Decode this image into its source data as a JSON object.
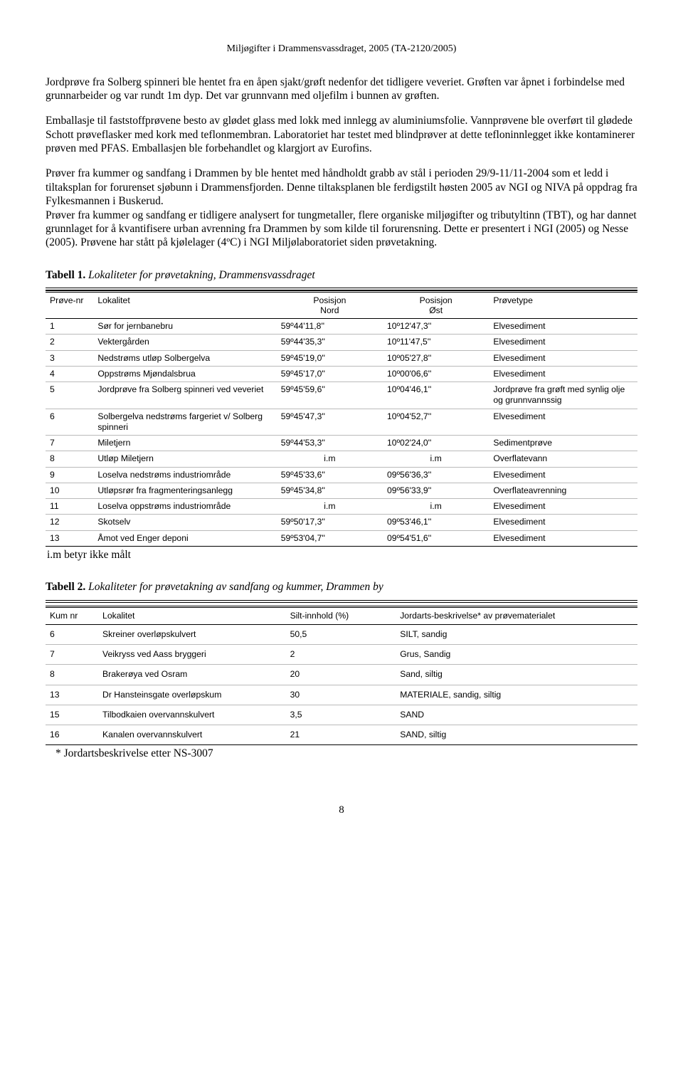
{
  "header": "Miljøgifter i Drammensvassdraget, 2005 (TA-2120/2005)",
  "para1": "Jordprøve fra Solberg spinneri ble hentet fra en åpen sjakt/grøft nedenfor det tidligere veveriet. Grøften var åpnet i forbindelse med grunnarbeider og var rundt 1m dyp. Det var grunnvann med oljefilm i bunnen av grøften.",
  "para2": "Emballasje til faststoffprøvene besto av glødet glass med lokk med innlegg av aluminiumsfolie. Vannprøvene ble overført til glødede Schott prøveflasker med kork med teflonmembran. Laboratoriet har testet med blindprøver at dette tefloninnlegget ikke kontaminerer prøven med PFAS. Emballasjen ble forbehandlet og klargjort av Eurofins.",
  "para3": "Prøver fra kummer og sandfang i Drammen by ble hentet med håndholdt grabb av stål i perioden 29/9-11/11-2004 som et ledd i tiltaksplan for forurenset sjøbunn i Drammensfjorden. Denne tiltaksplanen ble ferdigstilt høsten 2005 av NGI og NIVA på oppdrag fra Fylkesmannen i Buskerud.",
  "para4": "Prøver fra kummer og sandfang er tidligere analysert for tungmetaller, flere organiske miljøgifter og tributyltinn (TBT), og har dannet grunnlaget for å kvantifisere urban avrenning fra Drammen by som kilde til forurensning. Dette er presentert i NGI (2005) og Nesse (2005). Prøvene har stått på kjølelager (4ºC) i NGI Miljølaboratoriet siden prøvetakning.",
  "table1": {
    "caption_bold": "Tabell 1.",
    "caption_ital": " Lokaliteter for prøvetakning, Drammensvassdraget",
    "headers": {
      "c1": "Prøve-nr",
      "c2": "Lokalitet",
      "c3a": "Posisjon",
      "c3b": "Nord",
      "c4a": "Posisjon",
      "c4b": "Øst",
      "c5": "Prøvetype"
    },
    "rows": [
      {
        "n": "1",
        "lok": "Sør for jernbanebru",
        "nord": "59º44'11,8''",
        "ost": "10º12'47,3''",
        "pt": "Elvesediment"
      },
      {
        "n": "2",
        "lok": "Vektergården",
        "nord": "59º44'35,3''",
        "ost": "10º11'47,5''",
        "pt": "Elvesediment"
      },
      {
        "n": "3",
        "lok": "Nedstrøms utløp Solbergelva",
        "nord": "59º45'19,0''",
        "ost": "10º05'27,8''",
        "pt": "Elvesediment"
      },
      {
        "n": "4",
        "lok": "Oppstrøms Mjøndalsbrua",
        "nord": "59º45'17,0''",
        "ost": "10º00'06,6''",
        "pt": "Elvesediment"
      },
      {
        "n": "5",
        "lok": "Jordprøve fra Solberg spinneri ved veveriet",
        "nord": "59º45'59,6''",
        "ost": "10º04'46,1''",
        "pt": "Jordprøve fra grøft med synlig olje og grunnvannssig"
      },
      {
        "n": "6",
        "lok": "Solbergelva nedstrøms fargeriet v/ Solberg spinneri",
        "nord": "59º45'47,3''",
        "ost": "10º04'52,7''",
        "pt": "Elvesediment"
      },
      {
        "n": "7",
        "lok": "Miletjern",
        "nord": "59º44'53,3''",
        "ost": "10º02'24,0''",
        "pt": "Sedimentprøve"
      },
      {
        "n": "8",
        "lok": "Utløp Miletjern",
        "nord": "i.m",
        "ost": "i.m",
        "pt": "Overflatevann"
      },
      {
        "n": "9",
        "lok": "Loselva nedstrøms industriområde",
        "nord": "59º45'33,6''",
        "ost": "09º56'36,3''",
        "pt": "Elvesediment"
      },
      {
        "n": "10",
        "lok": "Utløpsrør fra fragmenteringsanlegg",
        "nord": "59º45'34,8''",
        "ost": "09º56'33,9''",
        "pt": "Overflateavrenning"
      },
      {
        "n": "11",
        "lok": "Loselva oppstrøms industriområde",
        "nord": "i.m",
        "ost": "i.m",
        "pt": "Elvesediment"
      },
      {
        "n": "12",
        "lok": "Skotselv",
        "nord": "59º50'17,3''",
        "ost": "09º53'46,1''",
        "pt": "Elvesediment"
      },
      {
        "n": "13",
        "lok": "Åmot ved Enger deponi",
        "nord": "59º53'04,7''",
        "ost": "09º54'51,6''",
        "pt": "Elvesediment"
      }
    ],
    "footnote": "i.m betyr ikke målt"
  },
  "table2": {
    "caption_bold": "Tabell 2.",
    "caption_ital": " Lokaliteter for prøvetakning av sandfang og kummer, Drammen by",
    "headers": {
      "c1": "Kum nr",
      "c2": "Lokalitet",
      "c3": "Silt-innhold (%)",
      "c4": "Jordarts-beskrivelse* av prøvematerialet"
    },
    "rows": [
      {
        "n": "6",
        "lok": "Skreiner overløpskulvert",
        "silt": "50,5",
        "desc": "SILT, sandig"
      },
      {
        "n": "7",
        "lok": "Veikryss ved Aass bryggeri",
        "silt": "2",
        "desc": "Grus, Sandig"
      },
      {
        "n": "8",
        "lok": "Brakerøya ved Osram",
        "silt": "20",
        "desc": "Sand, siltig"
      },
      {
        "n": "13",
        "lok": "Dr Hansteinsgate overløpskum",
        "silt": "30",
        "desc": "MATERIALE, sandig, siltig"
      },
      {
        "n": "15",
        "lok": "Tilbodkaien overvannskulvert",
        "silt": "3,5",
        "desc": "SAND"
      },
      {
        "n": "16",
        "lok": "Kanalen overvannskulvert",
        "silt": "21",
        "desc": "SAND, siltig"
      }
    ],
    "footnote": "* Jordartsbeskrivelse etter NS-3007"
  },
  "page_number": "8"
}
